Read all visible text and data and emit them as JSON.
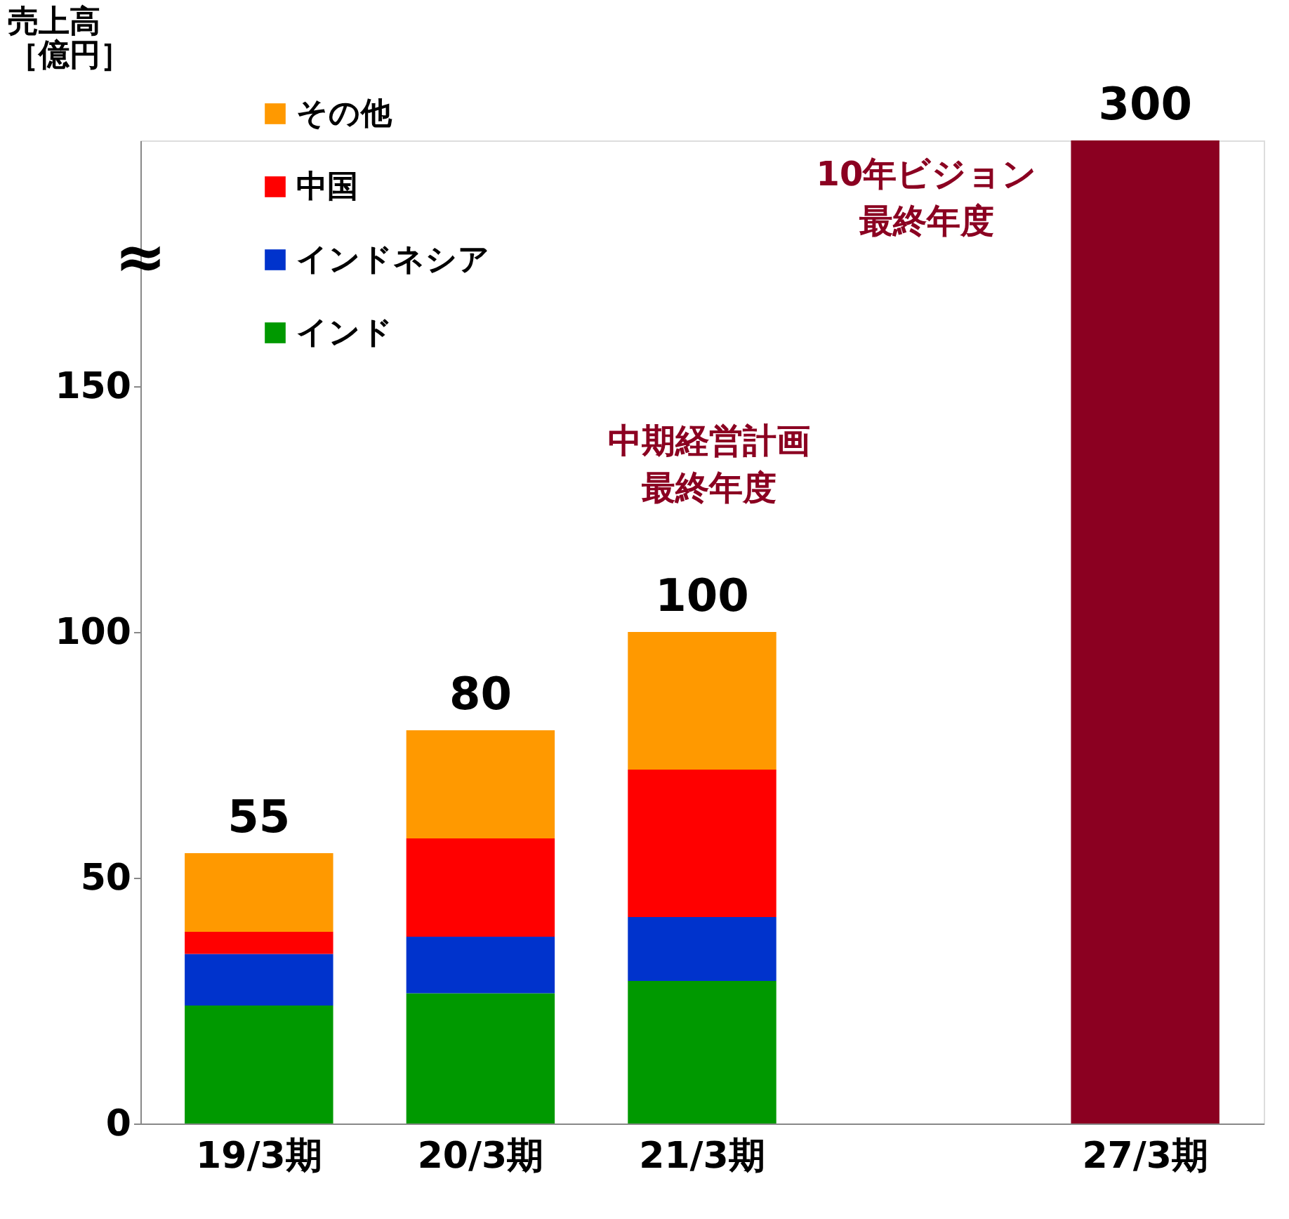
{
  "chart_data": {
    "type": "bar",
    "stacked": true,
    "categories": [
      "19/3期",
      "20/3期",
      "21/3期",
      null,
      "27/3期"
    ],
    "series": [
      {
        "name": "インド",
        "color": "#009900",
        "values": [
          24,
          26.5,
          29,
          null,
          null
        ]
      },
      {
        "name": "インドネシア",
        "color": "#0033cc",
        "values": [
          10.5,
          11.5,
          13,
          null,
          null
        ]
      },
      {
        "name": "中国",
        "color": "#ff0000",
        "values": [
          4.5,
          20,
          30,
          null,
          null
        ]
      },
      {
        "name": "その他",
        "color": "#ff9900",
        "values": [
          16,
          22,
          28,
          null,
          null
        ]
      },
      {
        "color": "#8b0021",
        "axis": "y2",
        "values": [
          null,
          null,
          null,
          null,
          300
        ],
        "value_labels": [
          null,
          null,
          null,
          null,
          "300"
        ]
      }
    ],
    "ylabel": "売上高［億円］",
    "ylim": [
      0,
      200
    ],
    "yticks": [
      0,
      50,
      100,
      150
    ],
    "totals": [
      "55",
      "80",
      "100",
      null,
      null
    ],
    "legend": "top left",
    "annotations": [
      "≈",
      "中期経営計画最終年度",
      "10年ビジョン最終年度"
    ]
  }
}
